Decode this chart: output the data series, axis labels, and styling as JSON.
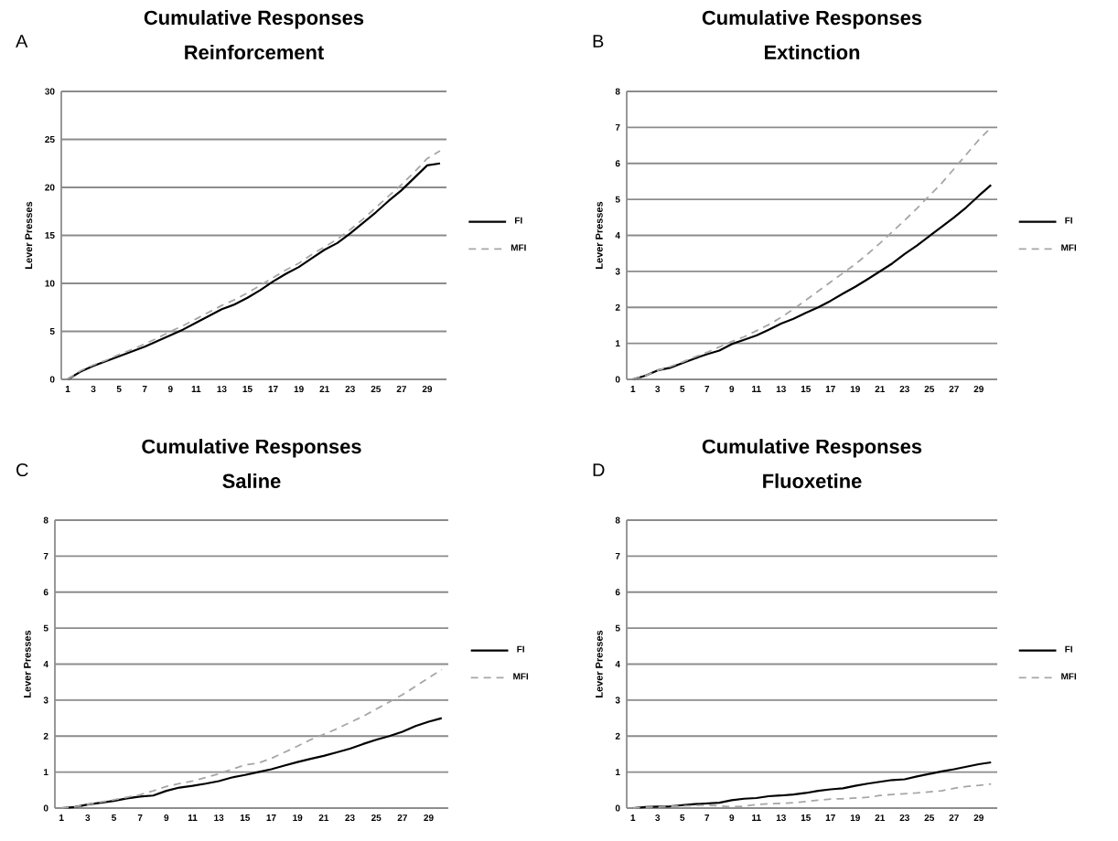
{
  "chart_data": [
    {
      "type": "line",
      "title": "Cumulative Responses",
      "subtitle": "Reinforcement",
      "ylabel": "Lever Presses",
      "annotations": [
        "A"
      ],
      "categories": [
        "1",
        null,
        "3",
        null,
        "5",
        null,
        "7",
        null,
        "9",
        null,
        "11",
        null,
        "13",
        null,
        "15",
        null,
        "17",
        null,
        "19",
        null,
        "21",
        null,
        "23",
        null,
        "25",
        null,
        "27",
        null,
        "29",
        null
      ],
      "series": [
        {
          "name": "FI",
          "color": "#000000",
          "line_style": "solid",
          "values": [
            0,
            0.8,
            1.4,
            1.9,
            2.4,
            2.9,
            3.4,
            4.0,
            4.6,
            5.2,
            5.9,
            6.6,
            7.3,
            7.8,
            8.5,
            9.3,
            10.2,
            11.0,
            11.7,
            12.6,
            13.5,
            14.2,
            15.2,
            16.3,
            17.4,
            18.6,
            19.7,
            21.0,
            22.3,
            22.5
          ]
        },
        {
          "name": "MFI",
          "color": "#a6a6a6",
          "line_style": "dashed",
          "values": [
            0,
            0.9,
            1.5,
            2.0,
            2.6,
            3.1,
            3.7,
            4.3,
            5.0,
            5.6,
            6.3,
            7.0,
            7.7,
            8.3,
            9.0,
            9.8,
            10.6,
            11.4,
            12.1,
            13.0,
            13.8,
            14.6,
            15.6,
            16.7,
            17.9,
            19.1,
            20.3,
            21.6,
            23.0,
            23.8
          ]
        }
      ],
      "ylim": [
        0,
        30
      ],
      "yticks": [
        0,
        5,
        10,
        15,
        20,
        25,
        30
      ],
      "grid": "y",
      "legend": "right"
    },
    {
      "type": "line",
      "title": "Cumulative Responses",
      "subtitle": "Extinction",
      "ylabel": "Lever Presses",
      "annotations": [
        "B"
      ],
      "categories": [
        "1",
        null,
        "3",
        null,
        "5",
        null,
        "7",
        null,
        "9",
        null,
        "11",
        null,
        "13",
        null,
        "15",
        null,
        "17",
        null,
        "19",
        null,
        "21",
        null,
        "23",
        null,
        "25",
        null,
        "27",
        null,
        "29",
        null
      ],
      "series": [
        {
          "name": "FI",
          "color": "#000000",
          "line_style": "solid",
          "values": [
            0,
            0.1,
            0.25,
            0.32,
            0.45,
            0.58,
            0.7,
            0.8,
            0.98,
            1.1,
            1.22,
            1.38,
            1.55,
            1.68,
            1.85,
            2.0,
            2.18,
            2.38,
            2.57,
            2.78,
            3.0,
            3.22,
            3.48,
            3.72,
            3.98,
            4.24,
            4.5,
            4.78,
            5.1,
            5.4
          ]
        },
        {
          "name": "MFI",
          "color": "#a6a6a6",
          "line_style": "dashed",
          "values": [
            0,
            0.1,
            0.25,
            0.35,
            0.48,
            0.62,
            0.75,
            0.9,
            1.05,
            1.18,
            1.35,
            1.52,
            1.72,
            1.95,
            2.2,
            2.45,
            2.7,
            2.95,
            3.2,
            3.48,
            3.78,
            4.1,
            4.42,
            4.75,
            5.1,
            5.45,
            5.85,
            6.25,
            6.65,
            7.0
          ]
        }
      ],
      "ylim": [
        0,
        8
      ],
      "yticks": [
        0,
        1,
        2,
        3,
        4,
        5,
        6,
        7,
        8
      ],
      "grid": "y",
      "legend": "right"
    },
    {
      "type": "line",
      "title": "Cumulative Responses",
      "subtitle": "Saline",
      "ylabel": "Lever Presses",
      "annotations": [
        "C"
      ],
      "categories": [
        "1",
        null,
        "3",
        null,
        "5",
        null,
        "7",
        null,
        "9",
        null,
        "11",
        null,
        "13",
        null,
        "15",
        null,
        "17",
        null,
        "19",
        null,
        "21",
        null,
        "23",
        null,
        "25",
        null,
        "27",
        null,
        "29",
        null
      ],
      "series": [
        {
          "name": "FI",
          "color": "#000000",
          "line_style": "solid",
          "values": [
            0,
            0.03,
            0.1,
            0.15,
            0.2,
            0.27,
            0.32,
            0.35,
            0.48,
            0.57,
            0.62,
            0.68,
            0.75,
            0.85,
            0.92,
            1.0,
            1.08,
            1.18,
            1.28,
            1.37,
            1.45,
            1.55,
            1.65,
            1.78,
            1.9,
            2.0,
            2.12,
            2.28,
            2.4,
            2.5
          ]
        },
        {
          "name": "MFI",
          "color": "#a6a6a6",
          "line_style": "dashed",
          "values": [
            0,
            0.03,
            0.1,
            0.17,
            0.23,
            0.3,
            0.37,
            0.48,
            0.6,
            0.68,
            0.75,
            0.85,
            0.95,
            1.08,
            1.2,
            1.25,
            1.38,
            1.55,
            1.72,
            1.9,
            2.05,
            2.2,
            2.38,
            2.55,
            2.75,
            2.95,
            3.15,
            3.38,
            3.62,
            3.85
          ]
        }
      ],
      "ylim": [
        0,
        8
      ],
      "yticks": [
        0,
        1,
        2,
        3,
        4,
        5,
        6,
        7,
        8
      ],
      "grid": "y",
      "legend": "right"
    },
    {
      "type": "line",
      "title": "Cumulative Responses",
      "subtitle": "Fluoxetine",
      "ylabel": "Lever Presses",
      "annotations": [
        "D"
      ],
      "categories": [
        "1",
        null,
        "3",
        null,
        "5",
        null,
        "7",
        null,
        "9",
        null,
        "11",
        null,
        "13",
        null,
        "15",
        null,
        "17",
        null,
        "19",
        null,
        "21",
        null,
        "23",
        null,
        "25",
        null,
        "27",
        null,
        "29",
        null
      ],
      "series": [
        {
          "name": "FI",
          "color": "#000000",
          "line_style": "solid",
          "values": [
            0,
            0.03,
            0.04,
            0.05,
            0.08,
            0.11,
            0.13,
            0.15,
            0.22,
            0.26,
            0.28,
            0.33,
            0.35,
            0.38,
            0.42,
            0.48,
            0.52,
            0.55,
            0.62,
            0.68,
            0.73,
            0.78,
            0.8,
            0.88,
            0.95,
            1.02,
            1.08,
            1.15,
            1.22,
            1.27
          ]
        },
        {
          "name": "MFI",
          "color": "#a6a6a6",
          "line_style": "dashed",
          "values": [
            0,
            0.02,
            0.03,
            0.05,
            0.06,
            0.07,
            0.08,
            0.06,
            0.04,
            0.05,
            0.1,
            0.12,
            0.13,
            0.15,
            0.18,
            0.22,
            0.25,
            0.26,
            0.28,
            0.3,
            0.35,
            0.38,
            0.4,
            0.42,
            0.45,
            0.48,
            0.55,
            0.6,
            0.63,
            0.67
          ]
        }
      ],
      "ylim": [
        0,
        8
      ],
      "yticks": [
        0,
        1,
        2,
        3,
        4,
        5,
        6,
        7,
        8
      ],
      "grid": "y",
      "legend": "right"
    }
  ]
}
